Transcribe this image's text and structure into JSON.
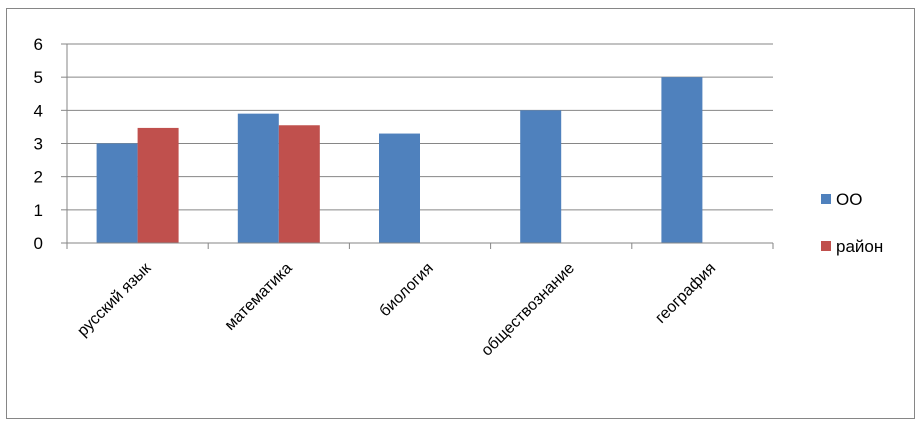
{
  "chart_data": {
    "type": "bar",
    "categories": [
      "русский язык",
      "математика",
      "биология",
      "обществознание",
      "география"
    ],
    "series": [
      {
        "name": "ОО",
        "values": [
          3.0,
          3.9,
          3.3,
          4.0,
          5.0
        ],
        "color": "#4F81BD"
      },
      {
        "name": "район",
        "values": [
          3.47,
          3.55,
          null,
          null,
          null
        ],
        "color": "#C0504D"
      }
    ],
    "ylim": [
      0,
      6
    ],
    "yticks": [
      0,
      1,
      2,
      3,
      4,
      5,
      6
    ],
    "grid": true,
    "legend_position": "right",
    "title": "",
    "xlabel": "",
    "ylabel": ""
  }
}
